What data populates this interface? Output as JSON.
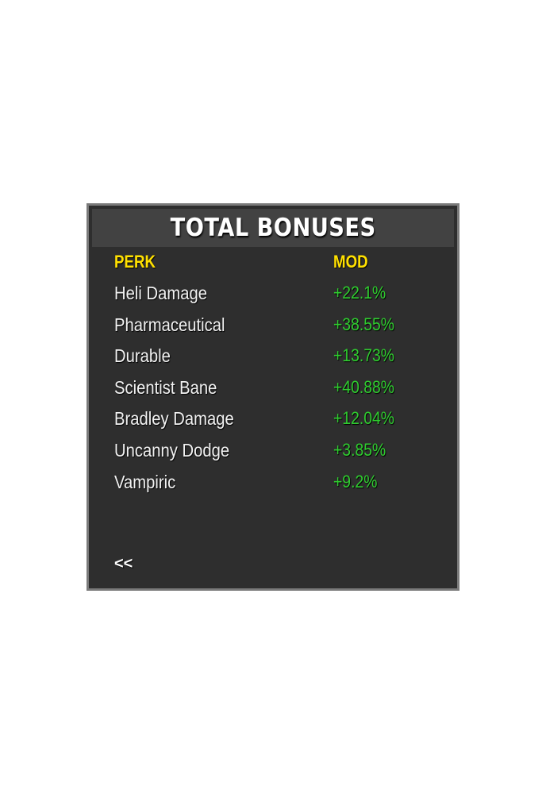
{
  "panel": {
    "title": "TOTAL BONUSES",
    "headers": {
      "perk": "PERK",
      "mod": "MOD"
    },
    "rows": [
      {
        "perk": "Heli Damage",
        "mod": "+22.1%"
      },
      {
        "perk": "Pharmaceutical",
        "mod": "+38.55%"
      },
      {
        "perk": "Durable",
        "mod": "+13.73%"
      },
      {
        "perk": "Scientist Bane",
        "mod": "+40.88%"
      },
      {
        "perk": "Bradley Damage",
        "mod": "+12.04%"
      },
      {
        "perk": "Uncanny Dodge",
        "mod": "+3.85%"
      },
      {
        "perk": "Vampiric",
        "mod": "+9.2%"
      }
    ],
    "back_label": "<<"
  },
  "colors": {
    "panel_bg": "#2e2e2e",
    "title_bar_bg": "#424242",
    "border": "#7a7a7a",
    "header_text": "#ffe000",
    "mod_text": "#2fcc2f",
    "perk_text": "#f2f2f2"
  }
}
